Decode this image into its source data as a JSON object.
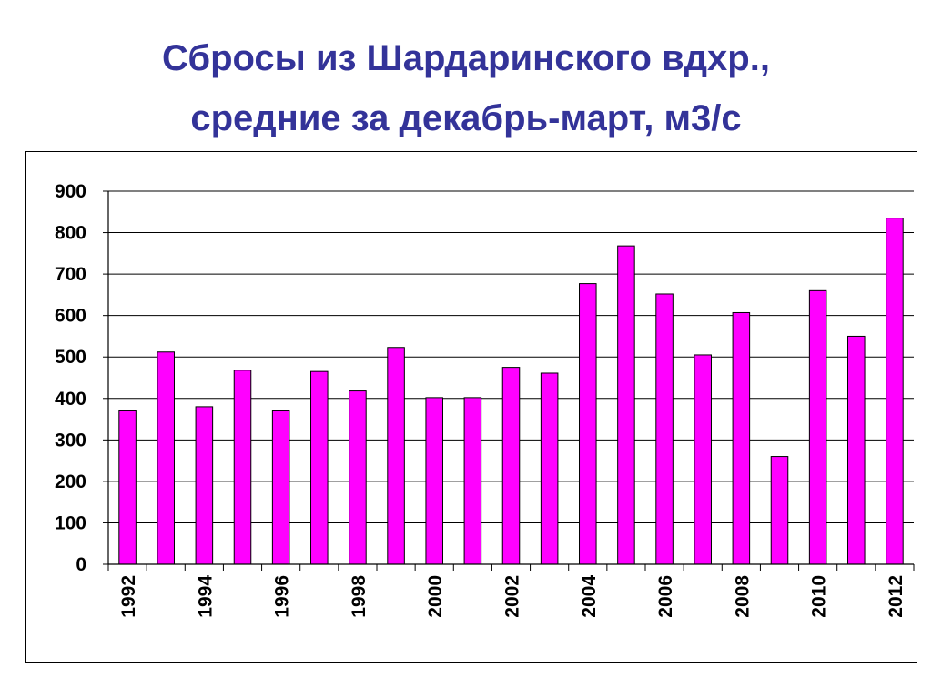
{
  "title": {
    "line1": "Сбросы из Шардаринского вдхр.,",
    "line2": "средние за декабрь-март, м3/с"
  },
  "colors": {
    "title": "#333399",
    "bar_fill": "#ff00ff",
    "bar_stroke": "#000000",
    "grid": "#000000"
  },
  "chart_data": {
    "type": "bar",
    "title": "Сбросы из Шардаринского вдхр., средние за декабрь-март, м3/с",
    "categories": [
      "1992",
      "1993",
      "1994",
      "1995",
      "1996",
      "1997",
      "1998",
      "1999",
      "2000",
      "2001",
      "2002",
      "2003",
      "2004",
      "2005",
      "2006",
      "2007",
      "2008",
      "2009",
      "2010",
      "2011",
      "2012"
    ],
    "values": [
      370,
      512,
      380,
      468,
      370,
      465,
      418,
      523,
      402,
      402,
      475,
      461,
      677,
      768,
      652,
      505,
      607,
      260,
      660,
      550,
      835
    ],
    "x_tick_labels": [
      "1992",
      "1994",
      "1996",
      "1998",
      "2000",
      "2002",
      "2004",
      "2006",
      "2008",
      "2010",
      "2012"
    ],
    "y_ticks": [
      0,
      100,
      200,
      300,
      400,
      500,
      600,
      700,
      800,
      900
    ],
    "ylim": [
      0,
      900
    ],
    "xlabel": "",
    "ylabel": "",
    "grid": "horizontal",
    "legend": "none"
  }
}
